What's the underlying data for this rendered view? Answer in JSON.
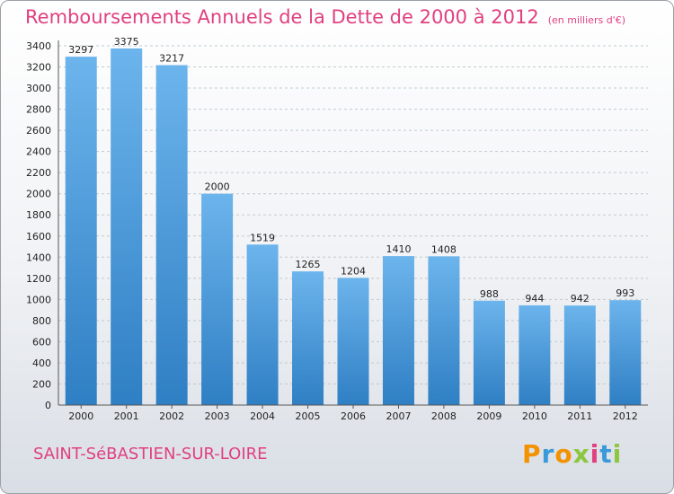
{
  "title": "Remboursements Annuels de la Dette de 2000 à 2012",
  "subtitle": "(en milliers d'€)",
  "city": "SAINT-SéBASTIEN-SUR-LOIRE",
  "brand": {
    "text": "Proxiti",
    "letter_colors": [
      "#f39200",
      "#3a9ad9",
      "#f39200",
      "#8dc63f",
      "#e0407f",
      "#3a9ad9",
      "#8dc63f"
    ]
  },
  "colors": {
    "bar": "#3d8fd4",
    "bar_light": "#6cb4ec",
    "accent": "#e0407f"
  },
  "chart_data": {
    "type": "bar",
    "title": "Remboursements Annuels de la Dette de 2000 à 2012",
    "subtitle": "(en milliers d'€)",
    "xlabel": "",
    "ylabel": "",
    "categories": [
      "2000",
      "2001",
      "2002",
      "2003",
      "2004",
      "2005",
      "2006",
      "2007",
      "2008",
      "2009",
      "2010",
      "2011",
      "2012"
    ],
    "values": [
      3297,
      3375,
      3217,
      2000,
      1519,
      1265,
      1204,
      1410,
      1408,
      988,
      944,
      942,
      993
    ],
    "ylim": [
      0,
      3400
    ],
    "yticks": [
      0,
      200,
      400,
      600,
      800,
      1000,
      1200,
      1400,
      1600,
      1800,
      2000,
      2200,
      2400,
      2600,
      2800,
      3000,
      3200,
      3400
    ],
    "grid": true,
    "data_labels": true
  }
}
